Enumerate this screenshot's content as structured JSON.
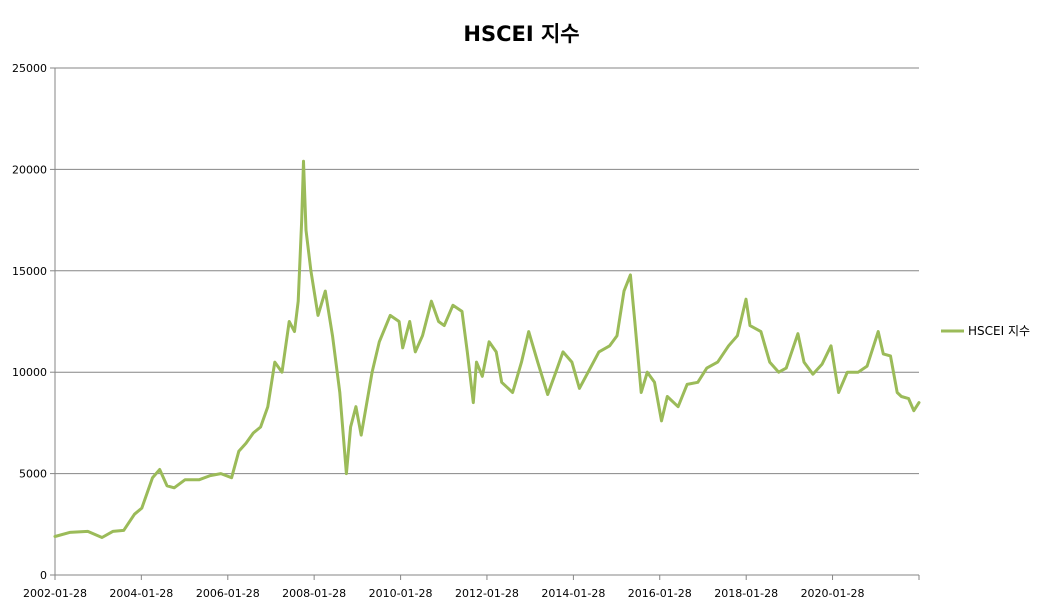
{
  "chart_data": {
    "type": "line",
    "title": "HSCEI 지수",
    "xlabel": "",
    "ylabel": "",
    "xlim": [
      "2002-01-28",
      "2022-01-28"
    ],
    "ylim": [
      0,
      25000
    ],
    "y_ticks": [
      0,
      5000,
      10000,
      15000,
      20000,
      25000
    ],
    "x_ticks": [
      "2002-01-28",
      "2004-01-28",
      "2006-01-28",
      "2008-01-28",
      "2010-01-28",
      "2012-01-28",
      "2014-01-28",
      "2016-01-28",
      "2018-01-28",
      "2020-01-28"
    ],
    "grid": true,
    "legend_position": "right",
    "color": "#9bbb59",
    "series": [
      {
        "name": "HSCEI 지수",
        "points": [
          [
            "2002-01-28",
            1900
          ],
          [
            "2002-06-01",
            2100
          ],
          [
            "2002-11-01",
            2150
          ],
          [
            "2003-03-01",
            1850
          ],
          [
            "2003-06-01",
            2150
          ],
          [
            "2003-09-01",
            2200
          ],
          [
            "2003-12-01",
            3000
          ],
          [
            "2004-02-01",
            3300
          ],
          [
            "2004-05-01",
            4800
          ],
          [
            "2004-07-01",
            5200
          ],
          [
            "2004-09-01",
            4400
          ],
          [
            "2004-11-01",
            4300
          ],
          [
            "2005-02-01",
            4700
          ],
          [
            "2005-06-01",
            4700
          ],
          [
            "2005-09-01",
            4900
          ],
          [
            "2005-12-01",
            5000
          ],
          [
            "2006-03-01",
            4800
          ],
          [
            "2006-05-01",
            6100
          ],
          [
            "2006-07-01",
            6500
          ],
          [
            "2006-09-01",
            7000
          ],
          [
            "2006-11-01",
            7300
          ],
          [
            "2007-01-01",
            8300
          ],
          [
            "2007-03-01",
            10500
          ],
          [
            "2007-05-01",
            10000
          ],
          [
            "2007-07-01",
            12500
          ],
          [
            "2007-08-15",
            12000
          ],
          [
            "2007-09-15",
            13500
          ],
          [
            "2007-10-15",
            17500
          ],
          [
            "2007-10-30",
            20400
          ],
          [
            "2007-11-20",
            17000
          ],
          [
            "2008-01-01",
            15000
          ],
          [
            "2008-03-01",
            12800
          ],
          [
            "2008-05-01",
            14000
          ],
          [
            "2008-07-01",
            11800
          ],
          [
            "2008-09-01",
            9000
          ],
          [
            "2008-10-27",
            5000
          ],
          [
            "2008-12-01",
            7300
          ],
          [
            "2009-01-15",
            8300
          ],
          [
            "2009-03-01",
            6900
          ],
          [
            "2009-06-01",
            10000
          ],
          [
            "2009-08-01",
            11500
          ],
          [
            "2009-11-01",
            12800
          ],
          [
            "2010-01-15",
            12500
          ],
          [
            "2010-02-15",
            11200
          ],
          [
            "2010-04-15",
            12500
          ],
          [
            "2010-06-01",
            11000
          ],
          [
            "2010-08-01",
            11800
          ],
          [
            "2010-10-15",
            13500
          ],
          [
            "2010-12-15",
            12500
          ],
          [
            "2011-02-01",
            12300
          ],
          [
            "2011-04-15",
            13300
          ],
          [
            "2011-07-01",
            13000
          ],
          [
            "2011-08-15",
            11000
          ],
          [
            "2011-10-05",
            8500
          ],
          [
            "2011-11-01",
            10500
          ],
          [
            "2011-12-20",
            9800
          ],
          [
            "2012-02-15",
            11500
          ],
          [
            "2012-04-15",
            11000
          ],
          [
            "2012-06-01",
            9500
          ],
          [
            "2012-09-01",
            9000
          ],
          [
            "2012-11-15",
            10500
          ],
          [
            "2013-01-15",
            12000
          ],
          [
            "2013-04-01",
            10500
          ],
          [
            "2013-06-25",
            8900
          ],
          [
            "2013-09-01",
            10000
          ],
          [
            "2013-11-01",
            11000
          ],
          [
            "2014-01-15",
            10500
          ],
          [
            "2014-03-20",
            9200
          ],
          [
            "2014-06-01",
            10000
          ],
          [
            "2014-09-01",
            11000
          ],
          [
            "2014-12-01",
            11300
          ],
          [
            "2015-02-01",
            11800
          ],
          [
            "2015-04-01",
            14000
          ],
          [
            "2015-05-25",
            14800
          ],
          [
            "2015-07-01",
            12500
          ],
          [
            "2015-08-24",
            9000
          ],
          [
            "2015-10-15",
            10000
          ],
          [
            "2015-12-15",
            9500
          ],
          [
            "2016-02-12",
            7600
          ],
          [
            "2016-04-01",
            8800
          ],
          [
            "2016-07-01",
            8300
          ],
          [
            "2016-09-15",
            9400
          ],
          [
            "2016-12-15",
            9500
          ],
          [
            "2017-03-01",
            10200
          ],
          [
            "2017-06-01",
            10500
          ],
          [
            "2017-09-01",
            11300
          ],
          [
            "2017-11-15",
            11800
          ],
          [
            "2018-01-26",
            13600
          ],
          [
            "2018-03-01",
            12300
          ],
          [
            "2018-06-01",
            12000
          ],
          [
            "2018-08-15",
            10500
          ],
          [
            "2018-10-30",
            10000
          ],
          [
            "2019-01-01",
            10200
          ],
          [
            "2019-04-10",
            11900
          ],
          [
            "2019-06-01",
            10500
          ],
          [
            "2019-08-15",
            9900
          ],
          [
            "2019-11-01",
            10400
          ],
          [
            "2020-01-15",
            11300
          ],
          [
            "2020-03-19",
            9000
          ],
          [
            "2020-06-01",
            10000
          ],
          [
            "2020-09-01",
            10000
          ],
          [
            "2020-11-15",
            10300
          ],
          [
            "2021-02-17",
            12000
          ],
          [
            "2021-04-01",
            10900
          ],
          [
            "2021-06-01",
            10800
          ],
          [
            "2021-07-28",
            9000
          ],
          [
            "2021-09-01",
            8800
          ],
          [
            "2021-11-01",
            8700
          ],
          [
            "2021-12-15",
            8100
          ],
          [
            "2022-01-28",
            8500
          ]
        ]
      }
    ]
  }
}
